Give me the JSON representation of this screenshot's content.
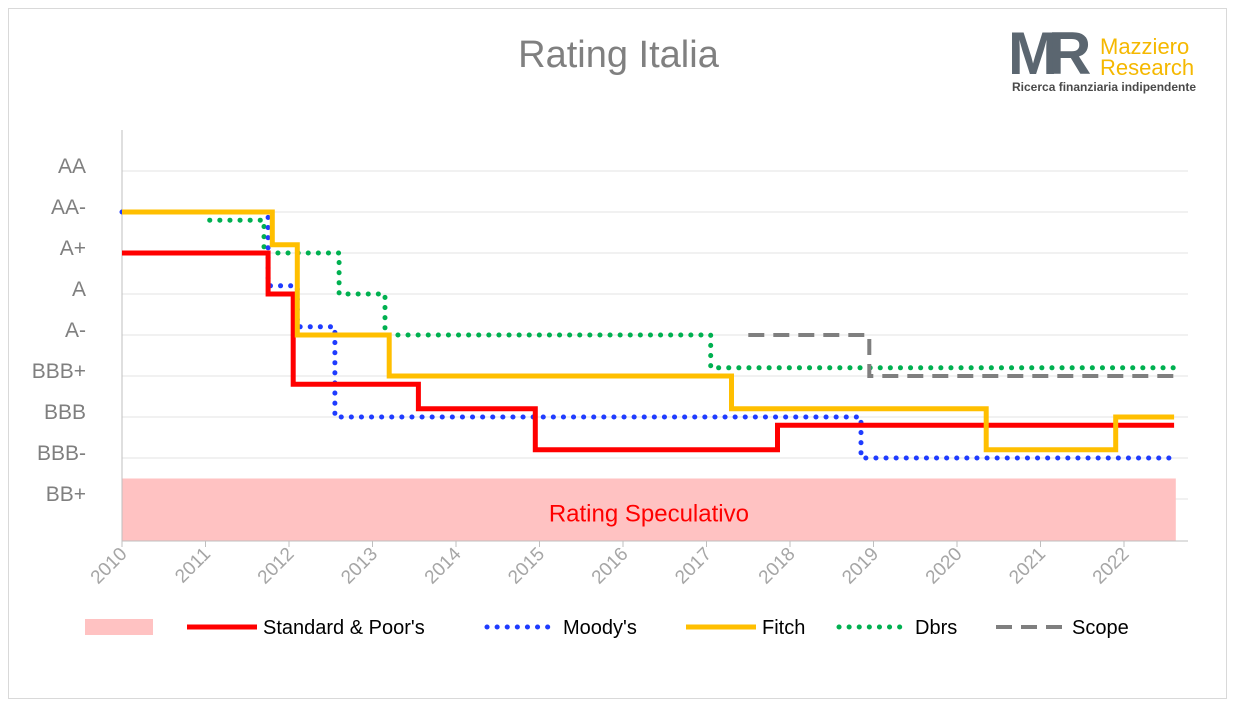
{
  "title": "Rating Italia",
  "logo": {
    "mark": "MR",
    "name_line1": "Mazziero",
    "name_line2": "Research",
    "tagline": "Ricerca finanziaria indipendente"
  },
  "chart_data": {
    "type": "line",
    "step": true,
    "title": "Rating Italia",
    "xlabel": "",
    "ylabel": "",
    "x_ticks": [
      "2010",
      "2011",
      "2012",
      "2013",
      "2014",
      "2015",
      "2016",
      "2017",
      "2018",
      "2019",
      "2020",
      "2021",
      "2022"
    ],
    "xlim": [
      2010,
      2022.8
    ],
    "y_ticks": [
      "AA",
      "AA-",
      "A+",
      "A",
      "A-",
      "BBB+",
      "BBB",
      "BBB-",
      "BB+"
    ],
    "y_scale_note": "notch scale: AA=8, AA-=7, A+=6, A=5, A-=4, BBB+=3, BBB=2, BBB-=1, BB+=0",
    "ylim": [
      -0.5,
      9
    ],
    "speculative_zone": {
      "label": "Rating Speculativo",
      "from_rating": "BB+",
      "color": "#ffc2c2"
    },
    "legend_position": "bottom",
    "series": [
      {
        "name": "Standard & Poor's",
        "color": "#ff0000",
        "style": "solid",
        "points": [
          [
            2010,
            6
          ],
          [
            2011.75,
            6
          ],
          [
            2011.75,
            5
          ],
          [
            2012.05,
            5
          ],
          [
            2012.05,
            2.8
          ],
          [
            2013.55,
            2.8
          ],
          [
            2013.55,
            2.2
          ],
          [
            2014.95,
            2.2
          ],
          [
            2014.95,
            1.2
          ],
          [
            2017.85,
            1.2
          ],
          [
            2017.85,
            1.8
          ],
          [
            2022.6,
            1.8
          ]
        ]
      },
      {
        "name": "Moody's",
        "color": "#1f3cff",
        "style": "dotted",
        "points": [
          [
            2010,
            7
          ],
          [
            2011.75,
            7
          ],
          [
            2011.75,
            5.2
          ],
          [
            2012.1,
            5.2
          ],
          [
            2012.1,
            4.2
          ],
          [
            2012.55,
            4.2
          ],
          [
            2012.55,
            2
          ],
          [
            2018.85,
            2
          ],
          [
            2018.85,
            1
          ],
          [
            2022.6,
            1
          ]
        ]
      },
      {
        "name": "Fitch",
        "color": "#ffbf00",
        "style": "solid",
        "points": [
          [
            2010,
            7
          ],
          [
            2011.8,
            7
          ],
          [
            2011.8,
            6.2
          ],
          [
            2012.1,
            6.2
          ],
          [
            2012.1,
            4
          ],
          [
            2013.2,
            4
          ],
          [
            2013.2,
            3
          ],
          [
            2017.3,
            3
          ],
          [
            2017.3,
            2.2
          ],
          [
            2020.35,
            2.2
          ],
          [
            2020.35,
            1.2
          ],
          [
            2021.9,
            1.2
          ],
          [
            2021.9,
            2
          ],
          [
            2022.6,
            2
          ]
        ]
      },
      {
        "name": "Dbrs",
        "color": "#00b050",
        "style": "dotted",
        "points": [
          [
            2011.05,
            6.8
          ],
          [
            2011.7,
            6.8
          ],
          [
            2011.7,
            6
          ],
          [
            2012.6,
            6
          ],
          [
            2012.6,
            5
          ],
          [
            2013.15,
            5
          ],
          [
            2013.15,
            4
          ],
          [
            2017.05,
            4
          ],
          [
            2017.05,
            3.2
          ],
          [
            2022.6,
            3.2
          ]
        ]
      },
      {
        "name": "Scope",
        "color": "#7f7f7f",
        "style": "dashed",
        "points": [
          [
            2017.5,
            4
          ],
          [
            2018.95,
            4
          ],
          [
            2018.95,
            3
          ],
          [
            2022.6,
            3
          ]
        ]
      }
    ]
  }
}
